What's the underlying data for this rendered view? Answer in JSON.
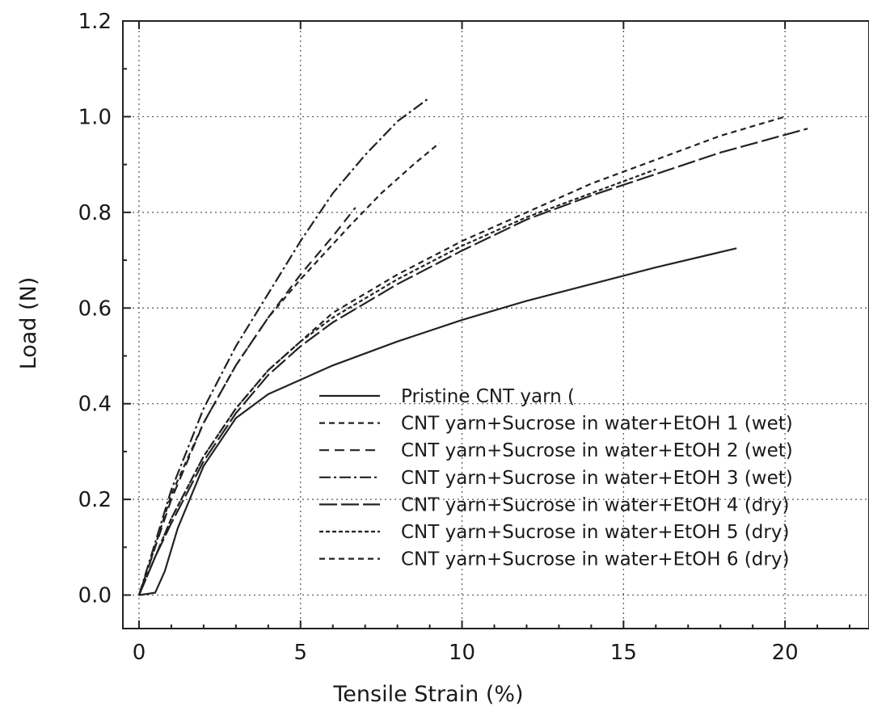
{
  "chart_data": {
    "type": "line",
    "xlabel": "Tensile Strain (%)",
    "ylabel": "Load (N)",
    "xlim": [
      -0.5,
      22.6
    ],
    "ylim": [
      -0.07,
      1.2
    ],
    "xticks": [
      0,
      5,
      10,
      15,
      20
    ],
    "xtick_labels": [
      "0",
      "5",
      "10",
      "15",
      "20"
    ],
    "yticks": [
      0.0,
      0.2,
      0.4,
      0.6,
      0.8,
      1.0,
      1.2
    ],
    "ytick_labels": [
      "0.0",
      "0.2",
      "0.4",
      "0.6",
      "0.8",
      "1.0",
      "1.2"
    ],
    "grid": true,
    "legend_position": "lower-right",
    "series": [
      {
        "name": "Pristine CNT yarn (",
        "dash": "solid",
        "x": [
          0,
          0.5,
          0.8,
          1.2,
          2,
          3,
          4,
          6,
          8,
          10,
          12,
          14,
          16,
          18.5
        ],
        "y": [
          0,
          0.005,
          0.05,
          0.14,
          0.27,
          0.37,
          0.42,
          0.48,
          0.53,
          0.575,
          0.615,
          0.65,
          0.685,
          0.725
        ]
      },
      {
        "name": "CNT yarn+Sucrose in water+EtOH 1 (wet)",
        "dash": "short-dash",
        "x": [
          0,
          0.3,
          1,
          2,
          3,
          4,
          5,
          6.5,
          7.5,
          8.5,
          9.3
        ],
        "y": [
          0,
          0.06,
          0.21,
          0.36,
          0.48,
          0.58,
          0.66,
          0.77,
          0.84,
          0.9,
          0.945
        ]
      },
      {
        "name": "CNT yarn+Sucrose in water+EtOH 2 (wet)",
        "dash": "medium-dash",
        "x": [
          0,
          0.5,
          1,
          2,
          3,
          4,
          5,
          6,
          6.7
        ],
        "y": [
          0,
          0.1,
          0.2,
          0.36,
          0.48,
          0.58,
          0.67,
          0.75,
          0.81
        ]
      },
      {
        "name": "CNT yarn+Sucrose in water+EtOH 3 (wet)",
        "dash": "dash-dot",
        "x": [
          0,
          0.5,
          1,
          2,
          3,
          4,
          5,
          6,
          7,
          8,
          9
        ],
        "y": [
          0,
          0.11,
          0.22,
          0.39,
          0.52,
          0.63,
          0.74,
          0.84,
          0.92,
          0.99,
          1.04
        ]
      },
      {
        "name": "CNT yarn+Sucrose in water+EtOH 4 (dry)",
        "dash": "long-dash",
        "x": [
          0,
          0.5,
          1,
          2,
          3,
          4,
          5,
          6,
          8,
          10,
          12,
          14,
          16,
          18,
          20.7
        ],
        "y": [
          0,
          0.08,
          0.15,
          0.28,
          0.38,
          0.46,
          0.52,
          0.57,
          0.65,
          0.72,
          0.785,
          0.835,
          0.88,
          0.925,
          0.975
        ]
      },
      {
        "name": "CNT yarn+Sucrose in water+EtOH 5 (dry)",
        "dash": "fine-dash",
        "x": [
          0,
          0.5,
          1,
          2,
          3,
          4,
          5,
          6,
          8,
          10,
          12,
          14,
          16
        ],
        "y": [
          0,
          0.08,
          0.16,
          0.29,
          0.39,
          0.47,
          0.53,
          0.58,
          0.66,
          0.73,
          0.79,
          0.84,
          0.89
        ]
      },
      {
        "name": "CNT yarn+Sucrose in water+EtOH 6 (dry)",
        "dash": "short-dash",
        "x": [
          0,
          0.5,
          1,
          2,
          3,
          4,
          5,
          6,
          8,
          10,
          12,
          14,
          16,
          18,
          20
        ],
        "y": [
          0,
          0.08,
          0.16,
          0.29,
          0.39,
          0.47,
          0.53,
          0.59,
          0.67,
          0.74,
          0.8,
          0.86,
          0.91,
          0.96,
          1.0
        ]
      }
    ]
  }
}
